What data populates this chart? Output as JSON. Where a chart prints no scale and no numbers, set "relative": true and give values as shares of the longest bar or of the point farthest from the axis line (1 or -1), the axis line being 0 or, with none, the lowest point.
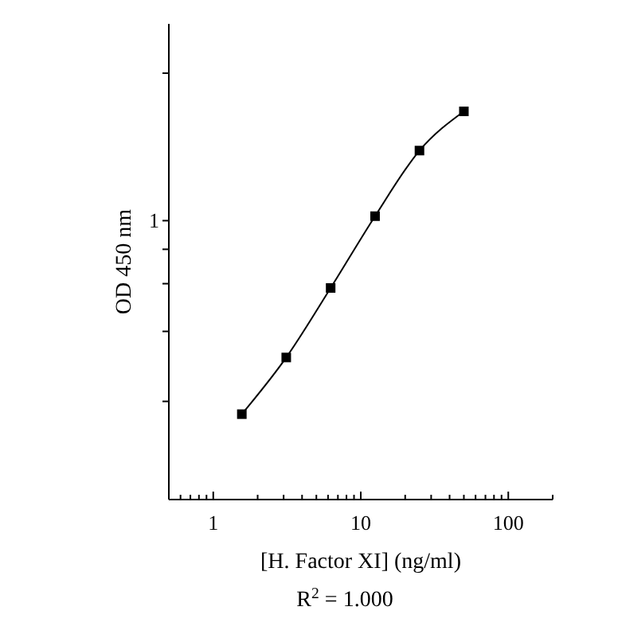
{
  "chart_data": {
    "type": "line",
    "xlabel": "[H. Factor XI] (ng/ml)",
    "ylabel": "OD 450 nm",
    "annotations": [
      "1",
      "R$^{2}$ = 1.000"
    ],
    "log": "x",
    "relative": true,
    "marker": "square",
    "line_style": "solid",
    "grid": false,
    "xlim": [
      0.5,
      200
    ],
    "xticks": [
      {
        "value": 0.5,
        "label": null
      },
      {
        "value": 0.6,
        "label": null
      },
      {
        "value": 0.7,
        "label": null
      },
      {
        "value": 0.8,
        "label": null
      },
      {
        "value": 0.9,
        "label": null
      },
      1,
      {
        "value": 2,
        "label": null
      },
      {
        "value": 3,
        "label": null
      },
      {
        "value": 4,
        "label": null
      },
      {
        "value": 5,
        "label": null
      },
      {
        "value": 6,
        "label": null
      },
      {
        "value": 7,
        "label": null
      },
      {
        "value": 8,
        "label": null
      },
      {
        "value": 9,
        "label": null
      },
      10,
      {
        "value": 20,
        "label": null
      },
      {
        "value": 30,
        "label": null
      },
      {
        "value": 40,
        "label": null
      },
      {
        "value": 50,
        "label": null
      },
      {
        "value": 60,
        "label": null
      },
      {
        "value": 70,
        "label": null
      },
      {
        "value": 80,
        "label": null
      },
      {
        "value": 90,
        "label": null
      },
      100,
      {
        "value": 200,
        "label": null
      }
    ],
    "x": [
      1.5625,
      3.125,
      6.25,
      12.5,
      25,
      50
    ],
    "series": [
      {
        "color": "#000000",
        "values": [
          0.22,
          0.366,
          0.545,
          0.73,
          0.899,
          1
        ]
      }
    ]
  }
}
